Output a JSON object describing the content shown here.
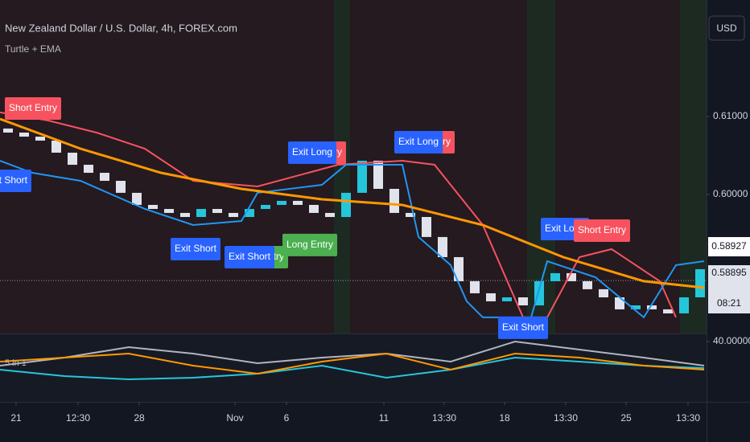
{
  "chart_data": [
    {
      "type": "candlestick",
      "title": "New Zealand Dollar / U.S. Dollar, 4h, FOREX.com",
      "subtitle": "Turtle + EMA",
      "currency": "USD",
      "up_color": "#26c6da",
      "down_color": "#e0e3eb",
      "open": [
        0.60846,
        0.60794,
        0.60742,
        0.60691,
        0.60536,
        0.60381,
        0.60278,
        0.60175,
        0.60021,
        0.59866,
        0.59814,
        0.59763,
        0.59711,
        0.59814,
        0.59763,
        0.59711,
        0.59814,
        0.59866,
        0.59918,
        0.59866,
        0.59763,
        0.59711,
        0.60021,
        0.60433,
        0.60072,
        0.59763,
        0.59711,
        0.59454,
        0.59196,
        0.58887,
        0.58732,
        0.58629,
        0.5868,
        0.58577,
        0.58887,
        0.5899,
        0.58887,
        0.58784,
        0.5868,
        0.58526,
        0.58577,
        0.58526,
        0.58474,
        0.5868
      ],
      "close": [
        0.60794,
        0.60742,
        0.60691,
        0.60536,
        0.60381,
        0.60278,
        0.60175,
        0.60021,
        0.59866,
        0.59814,
        0.59763,
        0.59711,
        0.59814,
        0.59763,
        0.59711,
        0.59814,
        0.59866,
        0.59918,
        0.59866,
        0.59763,
        0.59711,
        0.60021,
        0.60433,
        0.60072,
        0.59763,
        0.59711,
        0.59454,
        0.59196,
        0.58887,
        0.58732,
        0.58629,
        0.5868,
        0.58577,
        0.58887,
        0.5899,
        0.58887,
        0.58784,
        0.5868,
        0.58526,
        0.58577,
        0.58526,
        0.58474,
        0.5868,
        0.59041
      ],
      "series": [
        {
          "color": "#f7525f",
          "x": [
            0,
            3,
            6,
            9,
            12,
            16,
            21,
            25,
            27,
            30,
            32.5,
            34,
            36,
            38,
            41,
            42
          ],
          "values": [
            0.61052,
            0.60948,
            0.60794,
            0.60588,
            0.60175,
            0.60103,
            0.60381,
            0.60433,
            0.60381,
            0.59608,
            0.58423,
            0.58423,
            0.59196,
            0.59299,
            0.58887,
            0.58423
          ]
        },
        {
          "color": "#2196f3",
          "x": [
            0,
            2,
            5,
            9,
            12,
            15,
            16,
            20,
            21.5,
            25,
            26,
            28,
            29,
            30,
            33,
            34,
            37,
            40,
            42,
            43.75
          ],
          "values": [
            0.60433,
            0.60278,
            0.60175,
            0.59814,
            0.59608,
            0.5966,
            0.60021,
            0.60124,
            0.60381,
            0.60381,
            0.59454,
            0.59093,
            0.58629,
            0.58423,
            0.58423,
            0.59144,
            0.58938,
            0.58423,
            0.59093,
            0.59144
          ]
        },
        {
          "color": "#ff9800",
          "x": [
            0,
            5,
            10,
            15,
            20,
            25,
            30,
            35,
            40,
            43.75
          ],
          "values": [
            0.60969,
            0.60588,
            0.60278,
            0.60072,
            0.59938,
            0.59866,
            0.59608,
            0.59196,
            0.58887,
            0.58804
          ]
        }
      ],
      "xlim": [
        0,
        43.75
      ],
      "xticks": [
        {
          "value": 1,
          "label": "21"
        },
        {
          "value": 4.85,
          "label": "12:30"
        },
        {
          "value": 8.65,
          "label": "28"
        },
        {
          "value": 14.6,
          "label": "Nov"
        },
        {
          "value": 17.8,
          "label": "6"
        },
        {
          "value": 23.85,
          "label": "11"
        },
        {
          "value": 27.6,
          "label": "13:30"
        },
        {
          "value": 31.35,
          "label": "18"
        },
        {
          "value": 35.15,
          "label": "13:30"
        },
        {
          "value": 38.9,
          "label": "25"
        },
        {
          "value": 42.75,
          "label": "13:30"
        }
      ],
      "ylim": [
        0.58216,
        0.62495
      ],
      "yticks": [
        {
          "value": 0.61,
          "label": "0.61000"
        },
        {
          "value": 0.6,
          "label": "0.60000"
        }
      ],
      "price_labels": [
        0.58927,
        0.58895
      ],
      "countdown": "08:21",
      "annotations": [
        {
          "text": "Short Entry",
          "color": "#f7525f",
          "x": 2.05,
          "y": 0.61103
        },
        {
          "text": "Exit Short",
          "color": "#2962ff",
          "x": 0.4,
          "y": 0.60175
        },
        {
          "text": "Exit Short",
          "color": "#2962ff",
          "x": 12.15,
          "y": 0.59299
        },
        {
          "text": "Long Entry",
          "color": "#4caf50",
          "x": 16.2,
          "y": 0.59196
        },
        {
          "text": "Exit Short",
          "color": "#2962ff",
          "x": 15.5,
          "y": 0.59196
        },
        {
          "text": "Long Entry",
          "color": "#4caf50",
          "x": 19.25,
          "y": 0.59351
        },
        {
          "text": "Short Entry",
          "color": "#f7525f",
          "x": 19.75,
          "y": 0.60536
        },
        {
          "text": "Exit Long",
          "color": "#2962ff",
          "x": 19.4,
          "y": 0.60536
        },
        {
          "text": "Short Entry",
          "color": "#f7525f",
          "x": 26.5,
          "y": 0.6067
        },
        {
          "text": "Exit Long",
          "color": "#2962ff",
          "x": 26,
          "y": 0.6067
        },
        {
          "text": "Exit Short",
          "color": "#2962ff",
          "x": 32.5,
          "y": 0.58289
        },
        {
          "text": "Exit Long",
          "color": "#2962ff",
          "x": 35.1,
          "y": 0.59557
        },
        {
          "text": "Short Entry",
          "color": "#f7525f",
          "x": 37.4,
          "y": 0.59536
        }
      ]
    },
    {
      "type": "line",
      "title": "5 in 1",
      "xlim": [
        0,
        43.75
      ],
      "ylim": [
        -13,
        47
      ],
      "yticks": [
        {
          "value": 40,
          "label": "40.00000"
        }
      ],
      "series": [
        {
          "color": "#b2b5be",
          "x": [
            0,
            4,
            8,
            12,
            16,
            20,
            24,
            28,
            32,
            36,
            40,
            43.75
          ],
          "values": [
            10,
            20,
            33,
            25,
            13,
            20,
            25,
            15,
            40,
            30,
            20,
            10
          ]
        },
        {
          "color": "#26c6da",
          "x": [
            0,
            4,
            8,
            12,
            16,
            20,
            24,
            28,
            32,
            36,
            40,
            43.75
          ],
          "values": [
            5,
            -3,
            -7,
            -5,
            0,
            10,
            -5,
            5,
            20,
            15,
            10,
            7
          ]
        },
        {
          "color": "#ff9800",
          "x": [
            0,
            4,
            8,
            12,
            16,
            20,
            24,
            28,
            32,
            36,
            40,
            43.75
          ],
          "values": [
            15,
            20,
            25,
            10,
            0,
            15,
            25,
            5,
            25,
            20,
            10,
            5
          ]
        }
      ]
    }
  ]
}
